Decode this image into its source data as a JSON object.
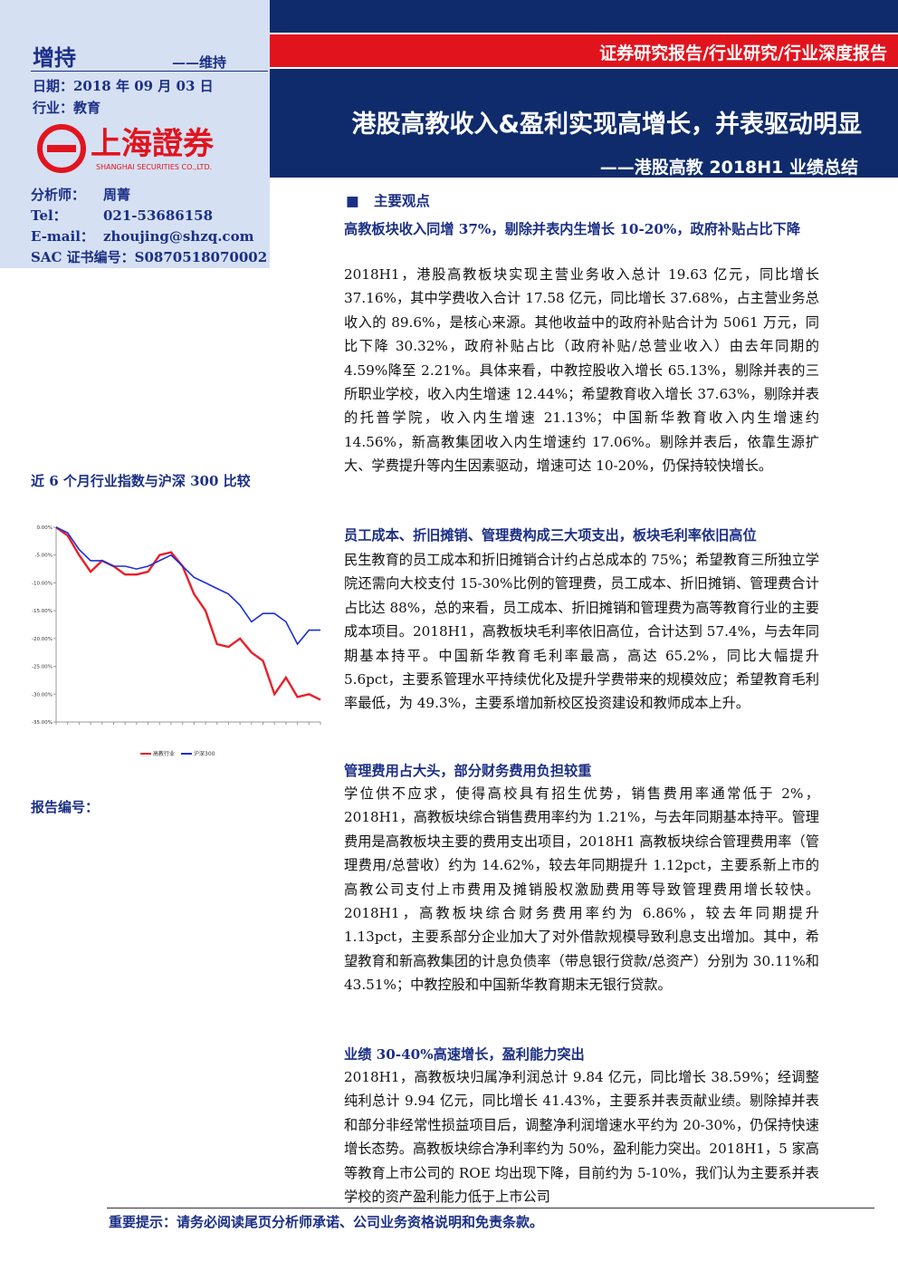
{
  "header": {
    "banner": "证券研究报告/行业研究/行业深度报告",
    "title": "港股高教收入&盈利实现高增长，并表驱动明显",
    "subtitle": "——港股高教 2018H1 业绩总结"
  },
  "sidebar": {
    "rating": "增持",
    "rating_change": "——维持",
    "date": "日期：2018 年 09 月 03 日",
    "industry": "行业：教育",
    "logo_cn": "上海證券",
    "logo_en": "SHANGHAI SECURITIES CO.,LTD.",
    "analyst": [
      [
        "分析师：",
        "周菁"
      ],
      [
        "Tel：",
        "021-53686158"
      ],
      [
        "E-mail：",
        "zhoujing@shzq.com"
      ],
      [
        "SAC 证书编号：",
        "S0870518070002"
      ]
    ],
    "chart_title": "近 6 个月行业指数与沪深 300 比较",
    "report_no": "报告编号："
  },
  "chart_data": {
    "type": "line",
    "series": [
      {
        "name": "高教行业",
        "color": "#e8202a",
        "values": [
          0,
          -1.5,
          -5,
          -8,
          -6,
          -7,
          -8.5,
          -8.5,
          -8,
          -5,
          -4.5,
          -7,
          -12,
          -15,
          -21,
          -21.5,
          -20,
          -22.5,
          -24,
          -30,
          -27,
          -30.5,
          -30,
          -31
        ]
      },
      {
        "name": "沪深300",
        "color": "#1c2fd6",
        "values": [
          0,
          -1,
          -4,
          -6,
          -6,
          -7,
          -7,
          -7.5,
          -7,
          -6,
          -5,
          -7,
          -9,
          -10,
          -11,
          -12,
          -14,
          -17,
          -15.5,
          -15.5,
          -17,
          -21,
          -18.5,
          -18.5
        ]
      }
    ],
    "ylim": [
      -35,
      0
    ],
    "yticks": [
      {
        "value": 0,
        "label": "0.00%"
      },
      {
        "value": -5,
        "label": "-5.00%"
      },
      {
        "value": -10,
        "label": "-10.00%"
      },
      {
        "value": -15,
        "label": "-15.00%"
      },
      {
        "value": -20,
        "label": "-20.00%"
      },
      {
        "value": -25,
        "label": "-25.00%"
      },
      {
        "value": -30,
        "label": "-30.00%"
      },
      {
        "value": -35,
        "label": "-35.00%"
      }
    ]
  },
  "body": {
    "section": "主要观点",
    "blocks": [
      {
        "heading": "高教板块收入同增 37%，剔除并表内生增长 10-20%，政府补贴占比下降",
        "text": "2018H1，港股高教板块实现主营业务收入总计 19.63 亿元，同比增长 37.16%，其中学费收入合计 17.58 亿元，同比增长 37.68%，占主营业务总收入的 89.6%，是核心来源。其他收益中的政府补贴合计为 5061 万元，同比下降 30.32%，政府补贴占比（政府补贴/总营业收入）由去年同期的 4.59%降至 2.21%。具体来看，中教控股收入增长 65.13%，剔除并表的三所职业学校，收入内生增速 12.44%；希望教育收入增长 37.63%，剔除并表的托普学院，收入内生增速 21.13%；中国新华教育收入内生增速约 14.56%，新高教集团收入内生增速约 17.06%。剔除并表后，依靠生源扩大、学费提升等内生因素驱动，增速可达 10-20%，仍保持较快增长。"
      },
      {
        "heading": "员工成本、折旧摊销、管理费构成三大项支出，板块毛利率依旧高位",
        "text": "民生教育的员工成本和折旧摊销合计约占总成本的 75%；希望教育三所独立学院还需向大校支付 15-30%比例的管理费，员工成本、折旧摊销、管理费合计占比达 88%，总的来看，员工成本、折旧摊销和管理费为高等教育行业的主要成本项目。2018H1，高教板块毛利率依旧高位，合计达到 57.4%，与去年同期基本持平。中国新华教育毛利率最高，高达 65.2%，同比大幅提升 5.6pct，主要系管理水平持续优化及提升学费带来的规模效应；希望教育毛利率最低，为 49.3%，主要系增加新校区投资建设和教师成本上升。"
      },
      {
        "heading": "管理费用占大头，部分财务费用负担较重",
        "text": "学位供不应求，使得高校具有招生优势，销售费用率通常低于 2%，2018H1，高教板块综合销售费用率约为 1.21%，与去年同期基本持平。管理费用是高教板块主要的费用支出项目，2018H1 高教板块综合管理费用率（管理费用/总营收）约为 14.62%，较去年同期提升 1.12pct，主要系新上市的高教公司支付上市费用及摊销股权激励费用等导致管理费用增长较快。2018H1，高教板块综合财务费用率约为 6.86%，较去年同期提升 1.13pct，主要系部分企业加大了对外借款规模导致利息支出增加。其中，希望教育和新高教集团的计息负债率（带息银行贷款/总资产）分别为 30.11%和 43.51%；中教控股和中国新华教育期末无银行贷款。"
      },
      {
        "heading": "业绩 30-40%高速增长，盈利能力突出",
        "text": "2018H1，高教板块归属净利润总计 9.84 亿元，同比增长 38.59%；经调整纯利总计 9.94 亿元，同比增长 41.43%，主要系并表贡献业绩。剔除掉并表和部分非经常性损益项目后，调整净利润增速水平约为 20-30%，仍保持快速增长态势。高教板块综合净利率约为 50%，盈利能力突出。2018H1，5 家高等教育上市公司的 ROE 均出现下降，目前约为 5-10%，我们认为主要系并表学校的资产盈利能力低于上市公司"
      }
    ]
  },
  "footer": {
    "notice": "重要提示：请务必阅读尾页分析师承诺、公司业务资格说明和免责条款。"
  }
}
